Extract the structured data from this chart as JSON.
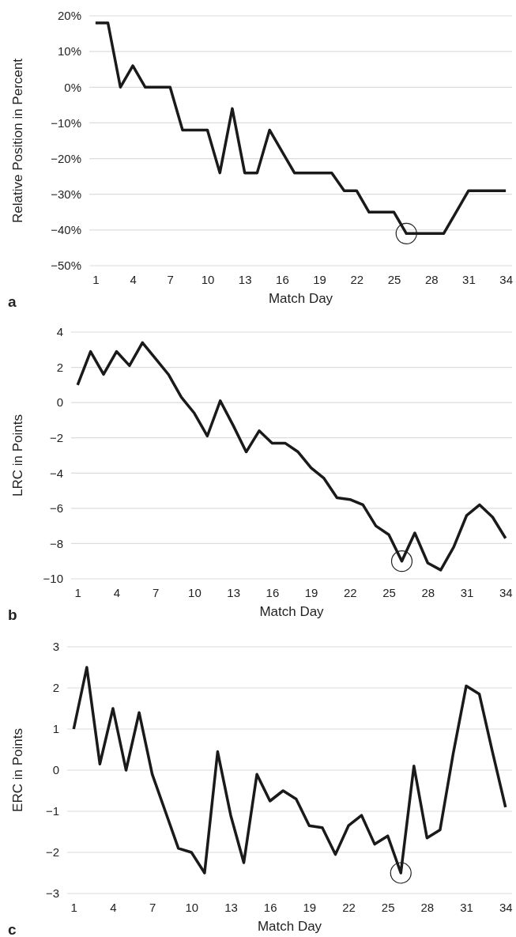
{
  "chart_data": [
    {
      "type": "line",
      "xlabel": "Match Day",
      "ylabel": "Relative Position in Percent",
      "x": [
        1,
        2,
        3,
        4,
        5,
        6,
        7,
        8,
        9,
        10,
        11,
        12,
        13,
        14,
        15,
        16,
        17,
        18,
        19,
        20,
        21,
        22,
        23,
        24,
        25,
        26,
        27,
        28,
        29,
        30,
        31,
        32,
        33,
        34
      ],
      "series": [
        {
          "color": "#1a1a1a",
          "values": [
            18,
            18,
            0,
            6,
            0,
            0,
            0,
            -12,
            -12,
            -12,
            -24,
            -6,
            -24,
            -24,
            -12,
            -18,
            -24,
            -24,
            -24,
            -24,
            -29,
            -29,
            -35,
            -35,
            -35,
            -41,
            -41,
            -41,
            -41,
            -35,
            -29,
            -29,
            -29,
            -29
          ]
        }
      ],
      "xlim": [
        0.5,
        34.5
      ],
      "xticks": [
        1,
        4,
        7,
        10,
        13,
        16,
        19,
        22,
        25,
        28,
        31,
        34
      ],
      "ylim": [
        -50,
        20
      ],
      "yticks": [
        {
          "value": 20,
          "label": "20%"
        },
        {
          "value": 10,
          "label": "10%"
        },
        {
          "value": 0,
          "label": "0%"
        },
        {
          "value": -10,
          "label": "−10%"
        },
        {
          "value": -20,
          "label": "−20%"
        },
        {
          "value": -30,
          "label": "−30%"
        },
        {
          "value": -40,
          "label": "−40%"
        },
        {
          "value": -50,
          "label": "−50%"
        }
      ],
      "grid": "y",
      "marker": "none",
      "line_style": "solid",
      "annotations": [
        "a"
      ]
    },
    {
      "type": "line",
      "xlabel": "Match Day",
      "ylabel": "LRC in Points",
      "x": [
        1,
        2,
        3,
        4,
        5,
        6,
        7,
        8,
        9,
        10,
        11,
        12,
        13,
        14,
        15,
        16,
        17,
        18,
        19,
        20,
        21,
        22,
        23,
        24,
        25,
        26,
        27,
        28,
        29,
        30,
        31,
        32,
        33,
        34
      ],
      "series": [
        {
          "color": "#1a1a1a",
          "values": [
            1.0,
            2.9,
            1.6,
            2.9,
            2.1,
            3.4,
            2.5,
            1.6,
            0.3,
            -0.6,
            -1.9,
            0.1,
            -1.3,
            -2.8,
            -1.6,
            -2.3,
            -2.3,
            -2.8,
            -3.7,
            -4.3,
            -5.4,
            -5.5,
            -5.8,
            -7.0,
            -7.5,
            -9.0,
            -7.4,
            -9.1,
            -9.5,
            -8.2,
            -6.4,
            -5.8,
            -6.5,
            -7.7
          ]
        }
      ],
      "xlim": [
        0.5,
        34.5
      ],
      "xticks": [
        1,
        4,
        7,
        10,
        13,
        16,
        19,
        22,
        25,
        28,
        31,
        34
      ],
      "ylim": [
        -10,
        4
      ],
      "yticks": [
        {
          "value": 4,
          "label": "4"
        },
        {
          "value": 2,
          "label": "2"
        },
        {
          "value": 0,
          "label": "0"
        },
        {
          "value": -2,
          "label": "−2"
        },
        {
          "value": -4,
          "label": "−4"
        },
        {
          "value": -6,
          "label": "−6"
        },
        {
          "value": -8,
          "label": "−8"
        },
        {
          "value": -10,
          "label": "−10"
        }
      ],
      "grid": "y",
      "marker": "none",
      "line_style": "solid",
      "annotations": [
        "b"
      ]
    },
    {
      "type": "line",
      "xlabel": "Match Day",
      "ylabel": "ERC in Points",
      "x": [
        1,
        2,
        3,
        4,
        5,
        6,
        7,
        8,
        9,
        10,
        11,
        12,
        13,
        14,
        15,
        16,
        17,
        18,
        19,
        20,
        21,
        22,
        23,
        24,
        25,
        26,
        27,
        28,
        29,
        30,
        31,
        32,
        33,
        34
      ],
      "series": [
        {
          "color": "#1a1a1a",
          "values": [
            1.0,
            2.5,
            0.15,
            1.5,
            0.0,
            1.4,
            -0.1,
            -1.0,
            -1.9,
            -2.0,
            -2.5,
            0.45,
            -1.1,
            -2.25,
            -0.1,
            -0.75,
            -0.5,
            -0.7,
            -1.35,
            -1.4,
            -2.05,
            -1.35,
            -1.1,
            -1.8,
            -1.6,
            -2.5,
            0.1,
            -1.65,
            -1.45,
            0.4,
            2.05,
            1.85,
            0.45,
            -0.9
          ]
        }
      ],
      "xlim": [
        0.5,
        34.5
      ],
      "xticks": [
        1,
        4,
        7,
        10,
        13,
        16,
        19,
        22,
        25,
        28,
        31,
        34
      ],
      "ylim": [
        -3,
        3
      ],
      "yticks": [
        {
          "value": 3,
          "label": "3"
        },
        {
          "value": 2,
          "label": "2"
        },
        {
          "value": 1,
          "label": "1"
        },
        {
          "value": 0,
          "label": "0"
        },
        {
          "value": -1,
          "label": "−1"
        },
        {
          "value": -2,
          "label": "−2"
        },
        {
          "value": -3,
          "label": "−3"
        }
      ],
      "grid": "y",
      "marker": "none",
      "line_style": "solid",
      "annotations": [
        "c"
      ]
    }
  ]
}
